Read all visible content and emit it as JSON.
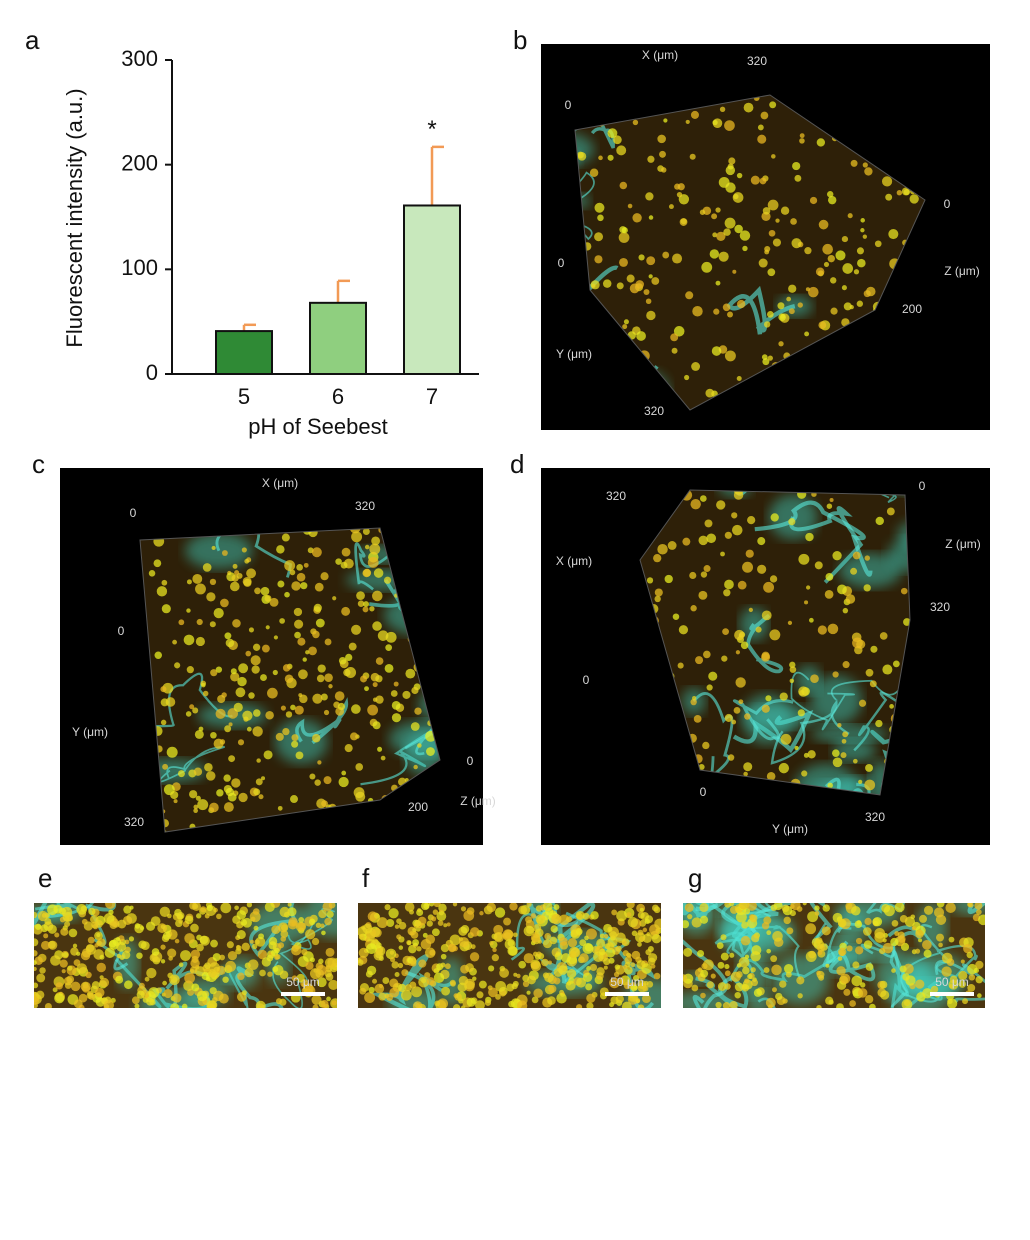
{
  "panel_labels": [
    "a",
    "b",
    "c",
    "d",
    "e",
    "f",
    "g"
  ],
  "chart_data": {
    "type": "bar",
    "ylabel": "Fluorescent intensity (a.u.)",
    "xlabel": "pH of Seebest",
    "categories": [
      "5",
      "6",
      "7"
    ],
    "values": [
      41,
      68,
      161
    ],
    "errors": [
      6,
      21,
      56
    ],
    "colors": [
      "#2f8a35",
      "#8fcf7f",
      "#c8e8bc"
    ],
    "error_color": "#f29a55",
    "ylim": [
      0,
      300
    ],
    "yticks": [
      0,
      100,
      200,
      300
    ],
    "annotations": [
      {
        "text": "*",
        "x": "7"
      }
    ]
  },
  "images": [
    {
      "annotations": [
        "X (μm)",
        "320",
        "0",
        "0",
        "Z (μm)",
        "200",
        "0",
        "Y (μm)",
        "320"
      ]
    },
    {
      "annotations": [
        "X (μm)",
        "320",
        "0",
        "0",
        "Y (μm)",
        "320",
        "0",
        "200",
        "Z (μm)"
      ]
    },
    {
      "annotations": [
        "320",
        "0",
        "Z (μm)",
        "X (μm)",
        "320",
        "0",
        "0",
        "Y (μm)",
        "320"
      ]
    },
    {
      "annotations": [
        "50 μm"
      ]
    },
    {
      "annotations": [
        "50 μm"
      ]
    },
    {
      "annotations": [
        "50 μm"
      ]
    }
  ]
}
